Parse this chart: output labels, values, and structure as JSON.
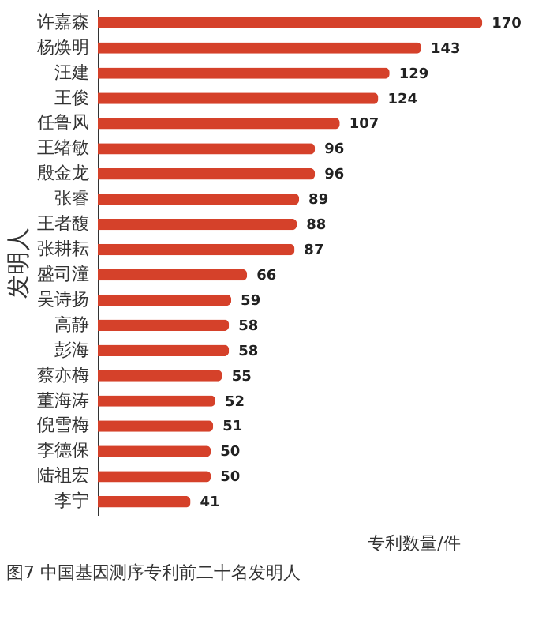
{
  "chart_data": {
    "type": "bar",
    "orientation": "horizontal",
    "title": "图7  中国基因测序专利前二十名发明人",
    "xlabel": "专利数量/件",
    "ylabel": "发明人",
    "categories": [
      "许嘉森",
      "杨焕明",
      "汪建",
      "王俊",
      "任鲁风",
      "王绪敏",
      "殷金龙",
      "张睿",
      "王者馥",
      "张耕耘",
      "盛司潼",
      "吴诗扬",
      "高静",
      "彭海",
      "蔡亦梅",
      "董海涛",
      "倪雪梅",
      "李德保",
      "陆祖宏",
      "李宁"
    ],
    "values": [
      170,
      143,
      129,
      124,
      107,
      96,
      96,
      89,
      88,
      87,
      66,
      59,
      58,
      58,
      55,
      52,
      51,
      50,
      50,
      41
    ],
    "color": "#d5412a",
    "data_labels": true,
    "tick_labels": "y"
  }
}
